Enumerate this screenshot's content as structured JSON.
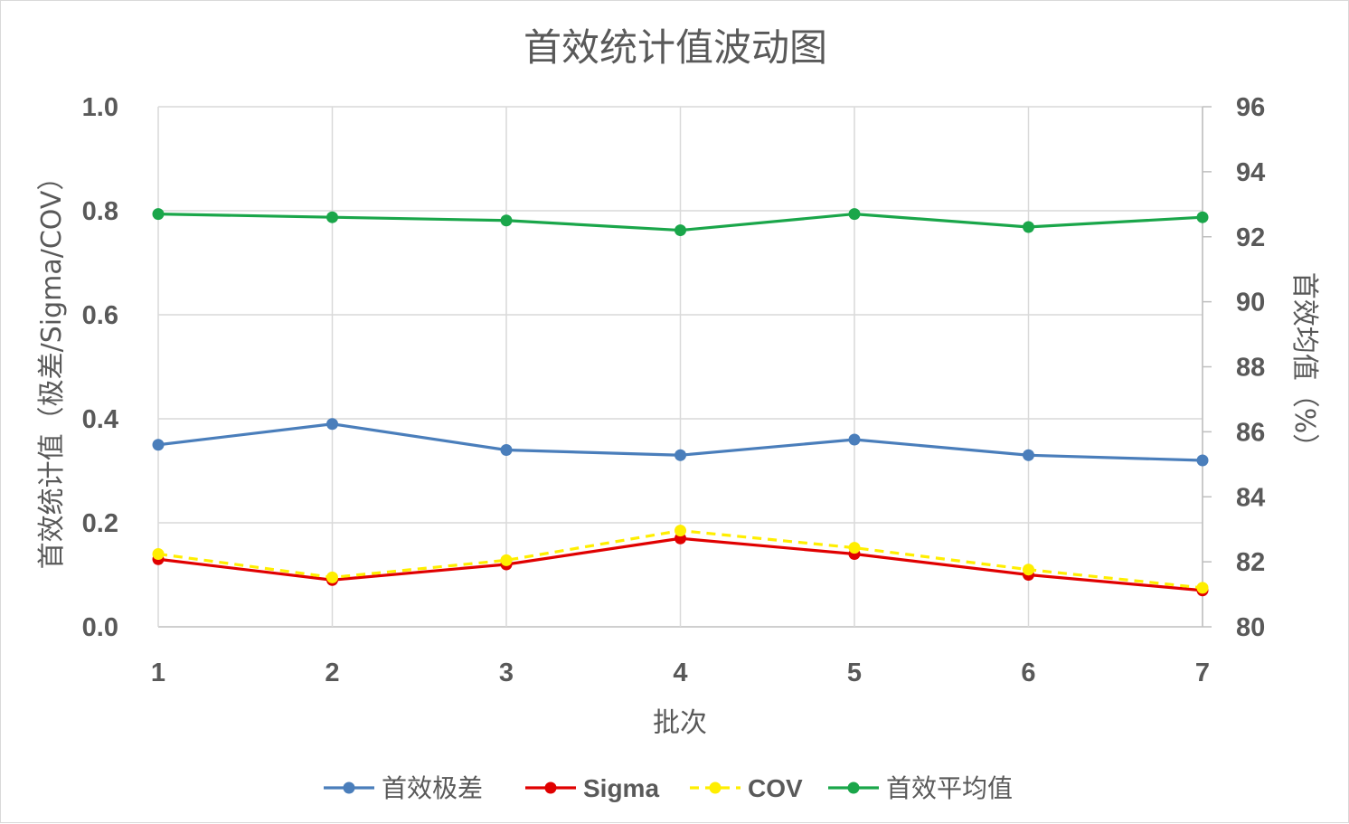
{
  "chart_data": {
    "type": "line",
    "title": "首效统计值波动图",
    "xlabel": "批次",
    "ylabel_left": "首效统计值（极差/Sigma/COV）",
    "ylabel_right": "首效均值（%）",
    "categories": [
      "1",
      "2",
      "3",
      "4",
      "5",
      "6",
      "7"
    ],
    "y_left": {
      "min": 0.0,
      "max": 1.0,
      "ticks": [
        "0.0",
        "0.2",
        "0.4",
        "0.6",
        "0.8",
        "1.0"
      ]
    },
    "y_right": {
      "min": 80,
      "max": 96,
      "ticks": [
        "80",
        "82",
        "84",
        "86",
        "88",
        "90",
        "92",
        "94",
        "96"
      ]
    },
    "grid": true,
    "legend_position": "bottom",
    "series": [
      {
        "name": "首效极差",
        "axis": "left",
        "color": "#4a7ebb",
        "dashed": false,
        "values": [
          0.35,
          0.39,
          0.34,
          0.33,
          0.36,
          0.33,
          0.32
        ]
      },
      {
        "name": "Sigma",
        "axis": "left",
        "color": "#e00000",
        "dashed": false,
        "values": [
          0.13,
          0.09,
          0.12,
          0.17,
          0.14,
          0.1,
          0.07
        ]
      },
      {
        "name": "COV",
        "axis": "left",
        "color": "#ffee00",
        "dashed": true,
        "values": [
          0.14,
          0.095,
          0.128,
          0.185,
          0.152,
          0.11,
          0.075
        ]
      },
      {
        "name": "首效平均值",
        "axis": "right",
        "color": "#1aa64a",
        "dashed": false,
        "values": [
          92.7,
          92.6,
          92.5,
          92.2,
          92.7,
          92.3,
          92.6
        ]
      }
    ]
  }
}
